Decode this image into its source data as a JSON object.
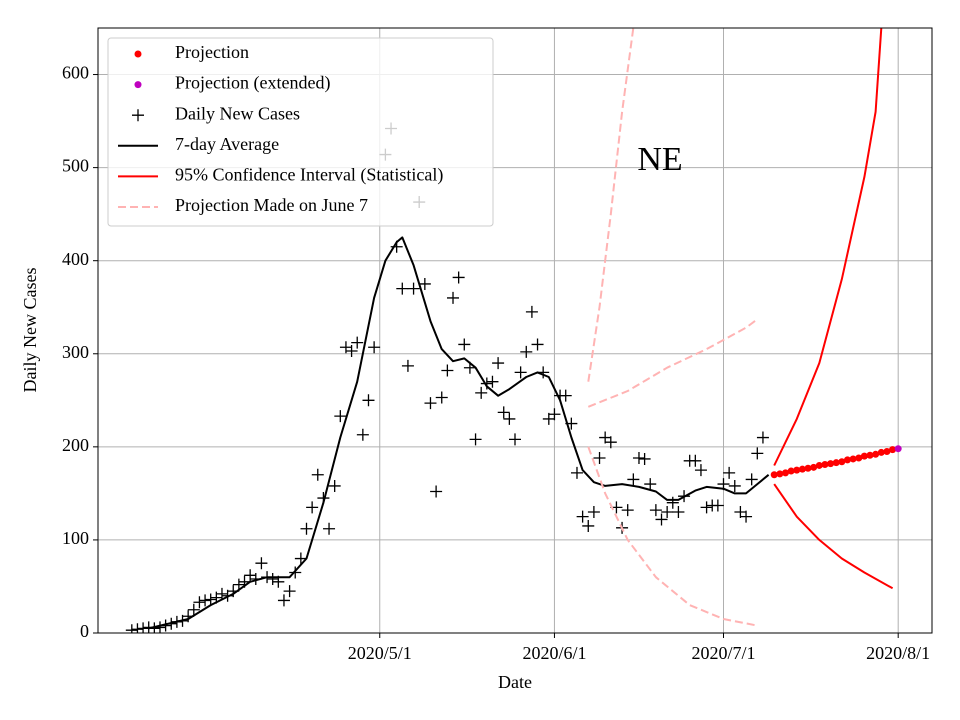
{
  "chart_data": {
    "type": "line",
    "annotation": "NE",
    "x_label": "Date",
    "y_label": "Daily New Cases",
    "xlim": [
      "2020/3/12",
      "2020/8/7"
    ],
    "xticks": [
      "2020/5/1",
      "2020/6/1",
      "2020/7/1",
      "2020/8/1"
    ],
    "ylim": [
      0,
      650
    ],
    "yticks": [
      0,
      100,
      200,
      300,
      400,
      500,
      600
    ],
    "grid": true,
    "legend": "upper left",
    "series": [
      {
        "name": "Projection",
        "color": "#ff0000",
        "marker": "dot",
        "x": [
          "2020/7/10",
          "2020/7/11",
          "2020/7/12",
          "2020/7/13",
          "2020/7/14",
          "2020/7/15",
          "2020/7/16",
          "2020/7/17",
          "2020/7/18",
          "2020/7/19",
          "2020/7/20",
          "2020/7/21",
          "2020/7/22",
          "2020/7/23",
          "2020/7/24",
          "2020/7/25",
          "2020/7/26",
          "2020/7/27",
          "2020/7/28",
          "2020/7/29",
          "2020/7/30",
          "2020/7/31"
        ],
        "values": [
          170,
          171,
          172,
          174,
          175,
          176,
          177,
          178,
          180,
          181,
          182,
          183,
          184,
          186,
          187,
          188,
          190,
          191,
          192,
          194,
          195,
          197
        ]
      },
      {
        "name": "Projection (extended)",
        "color": "#bf00bf",
        "marker": "dot",
        "x": [
          "2020/8/1"
        ],
        "values": [
          198
        ]
      },
      {
        "name": "Daily New Cases",
        "color": "#000000",
        "marker": "plus",
        "x": [
          "2020/3/18",
          "2020/3/19",
          "2020/3/20",
          "2020/3/21",
          "2020/3/22",
          "2020/3/23",
          "2020/3/24",
          "2020/3/25",
          "2020/3/26",
          "2020/3/27",
          "2020/3/28",
          "2020/3/29",
          "2020/3/30",
          "2020/3/31",
          "2020/4/1",
          "2020/4/2",
          "2020/4/3",
          "2020/4/4",
          "2020/4/5",
          "2020/4/6",
          "2020/4/7",
          "2020/4/8",
          "2020/4/9",
          "2020/4/10",
          "2020/4/11",
          "2020/4/12",
          "2020/4/13",
          "2020/4/14",
          "2020/4/15",
          "2020/4/16",
          "2020/4/17",
          "2020/4/18",
          "2020/4/19",
          "2020/4/20",
          "2020/4/21",
          "2020/4/22",
          "2020/4/23",
          "2020/4/24",
          "2020/4/25",
          "2020/4/26",
          "2020/4/27",
          "2020/4/28",
          "2020/4/29",
          "2020/4/30",
          "2020/5/2",
          "2020/5/3",
          "2020/5/4",
          "2020/5/5",
          "2020/5/6",
          "2020/5/7",
          "2020/5/8",
          "2020/5/9",
          "2020/5/10",
          "2020/5/11",
          "2020/5/12",
          "2020/5/13",
          "2020/5/14",
          "2020/5/15",
          "2020/5/16",
          "2020/5/17",
          "2020/5/18",
          "2020/5/19",
          "2020/5/20",
          "2020/5/21",
          "2020/5/22",
          "2020/5/23",
          "2020/5/24",
          "2020/5/25",
          "2020/5/26",
          "2020/5/27",
          "2020/5/28",
          "2020/5/29",
          "2020/5/30",
          "2020/5/31",
          "2020/6/1",
          "2020/6/2",
          "2020/6/3",
          "2020/6/4",
          "2020/6/5",
          "2020/6/6",
          "2020/6/7",
          "2020/6/8",
          "2020/6/9",
          "2020/6/10",
          "2020/6/11",
          "2020/6/12",
          "2020/6/13",
          "2020/6/14",
          "2020/6/15",
          "2020/6/16",
          "2020/6/17",
          "2020/6/18",
          "2020/6/19",
          "2020/6/20",
          "2020/6/21",
          "2020/6/22",
          "2020/6/23",
          "2020/6/24",
          "2020/6/25",
          "2020/6/26",
          "2020/6/27",
          "2020/6/28",
          "2020/6/29",
          "2020/6/30",
          "2020/7/1",
          "2020/7/2",
          "2020/7/3",
          "2020/7/4",
          "2020/7/5",
          "2020/7/6",
          "2020/7/7",
          "2020/7/8"
        ],
        "values": [
          3,
          4,
          5,
          6,
          5,
          6,
          8,
          10,
          12,
          13,
          18,
          25,
          33,
          35,
          36,
          38,
          42,
          40,
          45,
          52,
          55,
          62,
          58,
          75,
          60,
          58,
          55,
          35,
          45,
          65,
          80,
          112,
          135,
          170,
          145,
          112,
          158,
          233,
          307,
          303,
          312,
          213,
          250,
          307,
          514,
          542,
          415,
          370,
          287,
          370,
          463,
          375,
          247,
          152,
          253,
          282,
          360,
          382,
          310,
          285,
          208,
          258,
          268,
          270,
          290,
          237,
          230,
          208,
          280,
          302,
          345,
          310,
          280,
          230,
          235,
          255,
          255,
          225,
          172,
          125,
          115,
          130,
          188,
          210,
          205,
          135,
          113,
          132,
          165,
          188,
          187,
          160,
          132,
          122,
          130,
          140,
          130,
          147,
          185,
          185,
          175,
          135,
          137,
          137,
          160,
          172,
          158,
          130,
          125,
          165,
          193,
          210
        ]
      },
      {
        "name": "7-day Average",
        "color": "#000000",
        "marker": "line",
        "x": [
          "2020/3/21",
          "2020/3/28",
          "2020/4/1",
          "2020/4/5",
          "2020/4/8",
          "2020/4/11",
          "2020/4/15",
          "2020/4/18",
          "2020/4/21",
          "2020/4/24",
          "2020/4/27",
          "2020/4/30",
          "2020/5/2",
          "2020/5/4",
          "2020/5/5",
          "2020/5/7",
          "2020/5/10",
          "2020/5/12",
          "2020/5/14",
          "2020/5/16",
          "2020/5/18",
          "2020/5/20",
          "2020/5/22",
          "2020/5/24",
          "2020/5/27",
          "2020/5/29",
          "2020/5/31",
          "2020/6/2",
          "2020/6/4",
          "2020/6/6",
          "2020/6/8",
          "2020/6/10",
          "2020/6/13",
          "2020/6/16",
          "2020/6/19",
          "2020/6/21",
          "2020/6/23",
          "2020/6/26",
          "2020/6/28",
          "2020/7/1",
          "2020/7/3",
          "2020/7/5",
          "2020/7/7",
          "2020/7/9"
        ],
        "values": [
          5,
          15,
          30,
          42,
          55,
          60,
          60,
          80,
          140,
          210,
          270,
          360,
          400,
          420,
          425,
          395,
          335,
          305,
          292,
          295,
          285,
          265,
          255,
          262,
          275,
          280,
          275,
          250,
          210,
          175,
          162,
          158,
          160,
          157,
          152,
          143,
          143,
          153,
          157,
          155,
          150,
          150,
          160,
          170
        ]
      },
      {
        "name": "95% Confidence Interval (Statistical)",
        "color": "#ff0000",
        "marker": "line",
        "x": [
          "2020/7/10",
          "2020/7/14",
          "2020/7/18",
          "2020/7/22",
          "2020/7/26",
          "2020/7/28",
          "2020/7/29",
          null,
          "2020/7/10",
          "2020/7/14",
          "2020/7/18",
          "2020/7/22",
          "2020/7/26",
          "2020/7/31"
        ],
        "values": [
          180,
          230,
          290,
          380,
          490,
          560,
          650,
          null,
          160,
          125,
          100,
          80,
          65,
          48
        ]
      },
      {
        "name": "Projection Made on June 7",
        "color": "#ffb3b3",
        "marker": "dashed",
        "x": [
          "2020/6/7",
          "2020/6/14",
          "2020/6/21",
          "2020/6/28",
          "2020/7/5",
          "2020/7/7",
          null,
          "2020/6/7",
          "2020/6/9",
          "2020/6/11",
          "2020/6/13",
          "2020/6/15",
          null,
          "2020/6/7",
          "2020/6/10",
          "2020/6/14",
          "2020/6/19",
          "2020/6/25",
          "2020/7/1",
          "2020/7/7"
        ],
        "values": [
          243,
          260,
          285,
          305,
          328,
          337,
          null,
          270,
          350,
          450,
          560,
          650,
          null,
          200,
          150,
          100,
          60,
          30,
          15,
          8
        ]
      }
    ]
  }
}
